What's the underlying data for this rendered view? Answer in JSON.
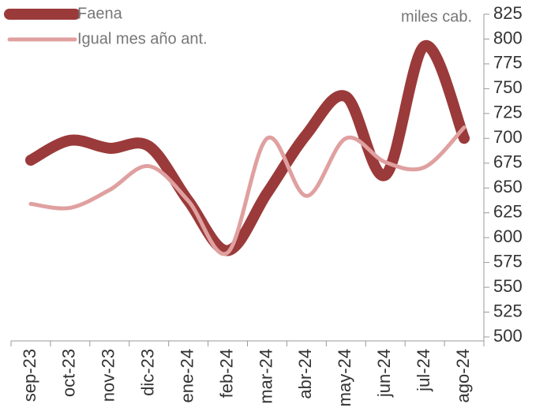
{
  "chart_data": {
    "type": "line",
    "y_label": "miles cab.",
    "categories": [
      "sep-23",
      "oct-23",
      "nov-23",
      "dic-23",
      "ene-24",
      "feb-24",
      "mar-24",
      "abr-24",
      "may-24",
      "jun-24",
      "jul-24",
      "ago-24"
    ],
    "series": [
      {
        "name": "Faena",
        "color": "#9b3a3a",
        "values": [
          678,
          698,
          690,
          692,
          637,
          587,
          645,
          704,
          742,
          663,
          793,
          700
        ]
      },
      {
        "name": "Igual mes año ant.",
        "color": "#e0a0a0",
        "values": [
          634,
          630,
          648,
          672,
          637,
          585,
          700,
          642,
          700,
          676,
          671,
          711
        ]
      }
    ],
    "ylim": [
      500,
      825
    ],
    "yticks": [
      500,
      525,
      550,
      575,
      600,
      625,
      650,
      675,
      700,
      725,
      750,
      775,
      800,
      825
    ],
    "legend": "top-left"
  }
}
